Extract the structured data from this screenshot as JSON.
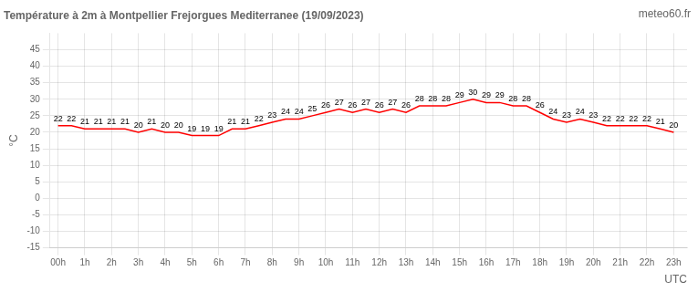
{
  "chart_data": {
    "type": "line",
    "title": "Température à 2m à Montpellier Frejorgues Mediterranee (19/09/2023)",
    "xlabel": "UTC",
    "ylabel": "°C",
    "annotations": [
      "meteo60.fr"
    ],
    "x": [
      0,
      0.5,
      1,
      1.5,
      2,
      2.5,
      3,
      3.5,
      4,
      4.5,
      5,
      5.5,
      6,
      6.5,
      7,
      7.5,
      8,
      8.5,
      9,
      9.5,
      10,
      10.5,
      11,
      11.5,
      12,
      12.5,
      13,
      13.5,
      14,
      14.5,
      15,
      15.5,
      16,
      16.5,
      17,
      17.5,
      18,
      18.5,
      19,
      19.5,
      20,
      20.5,
      21,
      21.5,
      22,
      22.5,
      23
    ],
    "values": [
      22,
      22,
      21,
      21,
      21,
      21,
      20,
      21,
      20,
      20,
      19,
      19,
      19,
      21,
      21,
      22,
      23,
      24,
      24,
      25,
      26,
      27,
      26,
      27,
      26,
      27,
      26,
      28,
      28,
      28,
      29,
      30,
      29,
      29,
      28,
      28,
      26,
      24,
      23,
      24,
      23,
      22,
      22,
      22,
      22,
      21,
      20
    ],
    "color": "#ff0000",
    "xlim": [
      -0.3,
      23.5
    ],
    "xticks": [
      {
        "value": 0,
        "label": "00h"
      },
      {
        "value": 1,
        "label": "1h"
      },
      {
        "value": 2,
        "label": "2h"
      },
      {
        "value": 3,
        "label": "3h"
      },
      {
        "value": 4,
        "label": "4h"
      },
      {
        "value": 5,
        "label": "5h"
      },
      {
        "value": 6,
        "label": "6h"
      },
      {
        "value": 7,
        "label": "7h"
      },
      {
        "value": 8,
        "label": "8h"
      },
      {
        "value": 9,
        "label": "9h"
      },
      {
        "value": 10,
        "label": "10h"
      },
      {
        "value": 11,
        "label": "11h"
      },
      {
        "value": 12,
        "label": "12h"
      },
      {
        "value": 13,
        "label": "13h"
      },
      {
        "value": 14,
        "label": "14h"
      },
      {
        "value": 15,
        "label": "15h"
      },
      {
        "value": 16,
        "label": "16h"
      },
      {
        "value": 17,
        "label": "17h"
      },
      {
        "value": 18,
        "label": "18h"
      },
      {
        "value": 19,
        "label": "19h"
      },
      {
        "value": 20,
        "label": "20h"
      },
      {
        "value": 21,
        "label": "21h"
      },
      {
        "value": 22,
        "label": "22h"
      },
      {
        "value": 23,
        "label": "23h"
      }
    ],
    "ylim": [
      -15,
      50
    ],
    "yticks": [
      -15,
      -10,
      -5,
      0,
      5,
      10,
      15,
      20,
      25,
      30,
      35,
      40,
      45
    ],
    "grid": true,
    "data_labels": true
  }
}
